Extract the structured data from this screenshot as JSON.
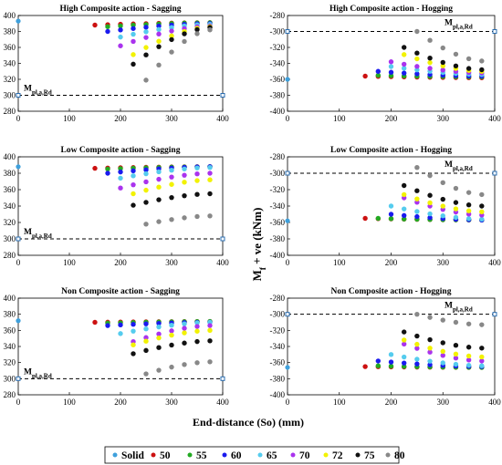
{
  "figure": {
    "ylabel": "M",
    "ylabel_sub": "f",
    "ylabel_rest": " + ve (kNm)",
    "xlabel": "End-distance (So) (mm)",
    "legend": [
      {
        "label": "Solid",
        "color": "#3ea0dc"
      },
      {
        "label": "50",
        "color": "#cc1111"
      },
      {
        "label": "55",
        "color": "#22aa22"
      },
      {
        "label": "60",
        "color": "#1a1aee"
      },
      {
        "label": "65",
        "color": "#55ccee"
      },
      {
        "label": "70",
        "color": "#aa33ee"
      },
      {
        "label": "72",
        "color": "#f2f200"
      },
      {
        "label": "75",
        "color": "#111111"
      },
      {
        "label": "80",
        "color": "#888888"
      }
    ]
  },
  "chart_data": [
    {
      "type": "scatter",
      "title": "High Composite action - Sagging",
      "annotation": "M",
      "annotation_sub": "pl,a,Rd",
      "reference_line": 300,
      "solid_value": 393,
      "xlim": [
        0,
        400
      ],
      "ylim": [
        280,
        400
      ],
      "xticks": [
        0,
        100,
        200,
        300,
        400
      ],
      "yticks": [
        280,
        300,
        320,
        340,
        360,
        380,
        400
      ],
      "x": [
        150,
        175,
        200,
        225,
        250,
        275,
        300,
        325,
        350,
        375
      ],
      "series": [
        {
          "name": "50",
          "start": 150,
          "y0": 388,
          "y1": 391
        },
        {
          "name": "55",
          "start": 175,
          "y0": 386,
          "y1": 391
        },
        {
          "name": "60",
          "start": 175,
          "y0": 380,
          "y1": 390
        },
        {
          "name": "65",
          "start": 200,
          "y0": 373,
          "y1": 389
        },
        {
          "name": "70",
          "start": 200,
          "y0": 362,
          "y1": 387
        },
        {
          "name": "72",
          "start": 225,
          "y0": 351,
          "y1": 386
        },
        {
          "name": "75",
          "start": 225,
          "y0": 339,
          "y1": 385
        },
        {
          "name": "80",
          "start": 250,
          "y0": 319,
          "y1": 382
        }
      ]
    },
    {
      "type": "scatter",
      "title": "High Composite action - Hogging",
      "annotation": "M",
      "annotation_sub": "pl,a,Rd",
      "reference_line": -300,
      "solid_value": -360,
      "xlim": [
        0,
        400
      ],
      "ylim": [
        -400,
        -280
      ],
      "xticks": [
        0,
        100,
        200,
        300,
        400
      ],
      "yticks": [
        -400,
        -380,
        -360,
        -340,
        -320,
        -300,
        -280
      ],
      "x": [
        150,
        175,
        200,
        225,
        250,
        275,
        300,
        325,
        350,
        375
      ],
      "series": [
        {
          "name": "50",
          "start": 150,
          "y0": -356,
          "y1": -358
        },
        {
          "name": "55",
          "start": 175,
          "y0": -355,
          "y1": -357
        },
        {
          "name": "60",
          "start": 175,
          "y0": -350,
          "y1": -356
        },
        {
          "name": "65",
          "start": 200,
          "y0": -344,
          "y1": -354
        },
        {
          "name": "70",
          "start": 200,
          "y0": -338,
          "y1": -352
        },
        {
          "name": "72",
          "start": 225,
          "y0": -329,
          "y1": -350
        },
        {
          "name": "75",
          "start": 225,
          "y0": -320,
          "y1": -348
        },
        {
          "name": "80",
          "start": 250,
          "y0": -300,
          "y1": -337
        }
      ]
    },
    {
      "type": "scatter",
      "title": "Low Composite action - Sagging",
      "annotation": "M",
      "annotation_sub": "pl,a,Rd",
      "reference_line": 300,
      "solid_value": 388,
      "xlim": [
        0,
        400
      ],
      "ylim": [
        280,
        400
      ],
      "xticks": [
        0,
        100,
        200,
        300,
        400
      ],
      "yticks": [
        280,
        300,
        320,
        340,
        360,
        380,
        400
      ],
      "x": [
        150,
        175,
        200,
        225,
        250,
        275,
        300,
        325,
        350,
        375
      ],
      "series": [
        {
          "name": "50",
          "start": 150,
          "y0": 386,
          "y1": 388
        },
        {
          "name": "55",
          "start": 175,
          "y0": 385,
          "y1": 388
        },
        {
          "name": "60",
          "start": 175,
          "y0": 380,
          "y1": 388
        },
        {
          "name": "65",
          "start": 200,
          "y0": 374,
          "y1": 387
        },
        {
          "name": "70",
          "start": 200,
          "y0": 362,
          "y1": 380
        },
        {
          "name": "72",
          "start": 225,
          "y0": 355,
          "y1": 372
        },
        {
          "name": "75",
          "start": 225,
          "y0": 341,
          "y1": 355
        },
        {
          "name": "80",
          "start": 250,
          "y0": 318,
          "y1": 328
        }
      ]
    },
    {
      "type": "scatter",
      "title": "Low Composite action - Hogging",
      "annotation": "M",
      "annotation_sub": "pl,a,Rd",
      "reference_line": -300,
      "solid_value": -358,
      "xlim": [
        0,
        400
      ],
      "ylim": [
        -400,
        -280
      ],
      "xticks": [
        0,
        100,
        200,
        300,
        400
      ],
      "yticks": [
        -400,
        -380,
        -360,
        -340,
        -320,
        -300,
        -280
      ],
      "x": [
        150,
        175,
        200,
        225,
        250,
        275,
        300,
        325,
        350,
        375
      ],
      "series": [
        {
          "name": "50",
          "start": 150,
          "y0": -355,
          "y1": -357
        },
        {
          "name": "55",
          "start": 175,
          "y0": -355,
          "y1": -357
        },
        {
          "name": "60",
          "start": 200,
          "y0": -350,
          "y1": -357
        },
        {
          "name": "65",
          "start": 200,
          "y0": -340,
          "y1": -356
        },
        {
          "name": "70",
          "start": 225,
          "y0": -330,
          "y1": -351
        },
        {
          "name": "72",
          "start": 225,
          "y0": -326,
          "y1": -347
        },
        {
          "name": "75",
          "start": 225,
          "y0": -315,
          "y1": -340
        },
        {
          "name": "80",
          "start": 250,
          "y0": -293,
          "y1": -326
        }
      ]
    },
    {
      "type": "scatter",
      "title": "Non Composite action - Sagging",
      "annotation": "M",
      "annotation_sub": "pl,a,Rd",
      "reference_line": 300,
      "solid_value": 372,
      "xlim": [
        0,
        400
      ],
      "ylim": [
        280,
        400
      ],
      "xticks": [
        0,
        100,
        200,
        300,
        400
      ],
      "yticks": [
        280,
        300,
        320,
        340,
        360,
        380,
        400
      ],
      "x": [
        150,
        175,
        200,
        225,
        250,
        275,
        300,
        325,
        350,
        375
      ],
      "series": [
        {
          "name": "50",
          "start": 150,
          "y0": 370,
          "y1": 371
        },
        {
          "name": "55",
          "start": 175,
          "y0": 369,
          "y1": 371
        },
        {
          "name": "60",
          "start": 175,
          "y0": 366,
          "y1": 370
        },
        {
          "name": "65",
          "start": 200,
          "y0": 356,
          "y1": 370
        },
        {
          "name": "70",
          "start": 225,
          "y0": 346,
          "y1": 366
        },
        {
          "name": "72",
          "start": 225,
          "y0": 342,
          "y1": 360
        },
        {
          "name": "75",
          "start": 225,
          "y0": 331,
          "y1": 347
        },
        {
          "name": "80",
          "start": 250,
          "y0": 306,
          "y1": 321
        }
      ]
    },
    {
      "type": "scatter",
      "title": "Non Composite action - Hogging",
      "annotation": "M",
      "annotation_sub": "pl,a,Rd",
      "reference_line": -300,
      "solid_value": -366,
      "xlim": [
        0,
        400
      ],
      "ylim": [
        -400,
        -280
      ],
      "xticks": [
        0,
        100,
        200,
        300,
        400
      ],
      "yticks": [
        -400,
        -380,
        -360,
        -340,
        -320,
        -300,
        -280
      ],
      "x": [
        150,
        175,
        200,
        225,
        250,
        275,
        300,
        325,
        350,
        375
      ],
      "series": [
        {
          "name": "50",
          "start": 150,
          "y0": -365,
          "y1": -366
        },
        {
          "name": "55",
          "start": 175,
          "y0": -364,
          "y1": -366
        },
        {
          "name": "60",
          "start": 175,
          "y0": -358,
          "y1": -365
        },
        {
          "name": "65",
          "start": 200,
          "y0": -350,
          "y1": -364
        },
        {
          "name": "70",
          "start": 225,
          "y0": -337,
          "y1": -358
        },
        {
          "name": "72",
          "start": 225,
          "y0": -332,
          "y1": -353
        },
        {
          "name": "75",
          "start": 225,
          "y0": -322,
          "y1": -342
        },
        {
          "name": "80",
          "start": 250,
          "y0": -300,
          "y1": -313
        }
      ]
    }
  ]
}
